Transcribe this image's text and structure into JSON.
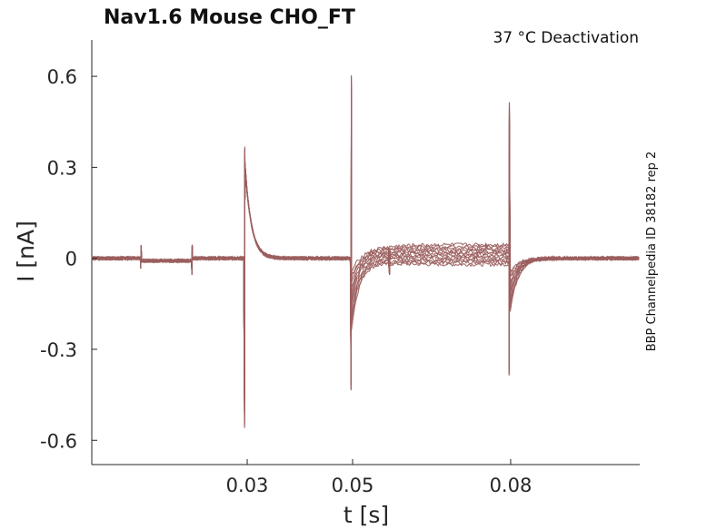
{
  "chart_data": {
    "type": "line",
    "title": "Nav1.6  Mouse  CHO_FT",
    "subtitle": "37 °C  Deactivation",
    "side_label": "BBP Channelpedia ID 38182 rep 2",
    "xlabel": "t [s]",
    "ylabel": "I [nA]",
    "xlim": [
      0.0005,
      0.1045
    ],
    "ylim": [
      -0.68,
      0.72
    ],
    "xticks": [
      0.03,
      0.05,
      0.08
    ],
    "xtick_labels": [
      "0.03",
      "0.05",
      "0.08"
    ],
    "yticks": [
      0.6,
      0.3,
      0,
      -0.3,
      -0.6
    ],
    "ytick_labels": [
      "0.6",
      "0.3",
      "0",
      "-0.3",
      "-0.6"
    ],
    "grid": false,
    "legend": "none",
    "trace_color": "#9b5e5e",
    "num_sweeps": 12,
    "events": [
      {
        "t": 0.0098,
        "up": 0.045,
        "down": -0.035
      },
      {
        "t": 0.0195,
        "up": 0.045,
        "down": -0.055
      },
      {
        "t": 0.0295,
        "up": 0.375,
        "down": -0.57
      },
      {
        "t": 0.0497,
        "up": 0.61,
        "down": -0.44
      },
      {
        "t": 0.057,
        "up": 0.0,
        "down": -0.055
      },
      {
        "t": 0.0797,
        "up": 0.52,
        "down": -0.39
      }
    ],
    "baseline_segments": [
      {
        "t_start": 0.0005,
        "t_end": 0.0098,
        "level": 0.0
      },
      {
        "t_start": 0.0098,
        "t_end": 0.0195,
        "level": -0.008
      },
      {
        "t_start": 0.0195,
        "t_end": 0.0295,
        "level": 0.0
      },
      {
        "t_start": 0.0295,
        "t_end": 0.0497,
        "level": 0.0
      },
      {
        "t_start": 0.0497,
        "t_end": 0.0797,
        "level_min": -0.02,
        "level_max": 0.045
      },
      {
        "t_start": 0.0797,
        "t_end": 0.1045,
        "level": 0.0
      }
    ]
  }
}
